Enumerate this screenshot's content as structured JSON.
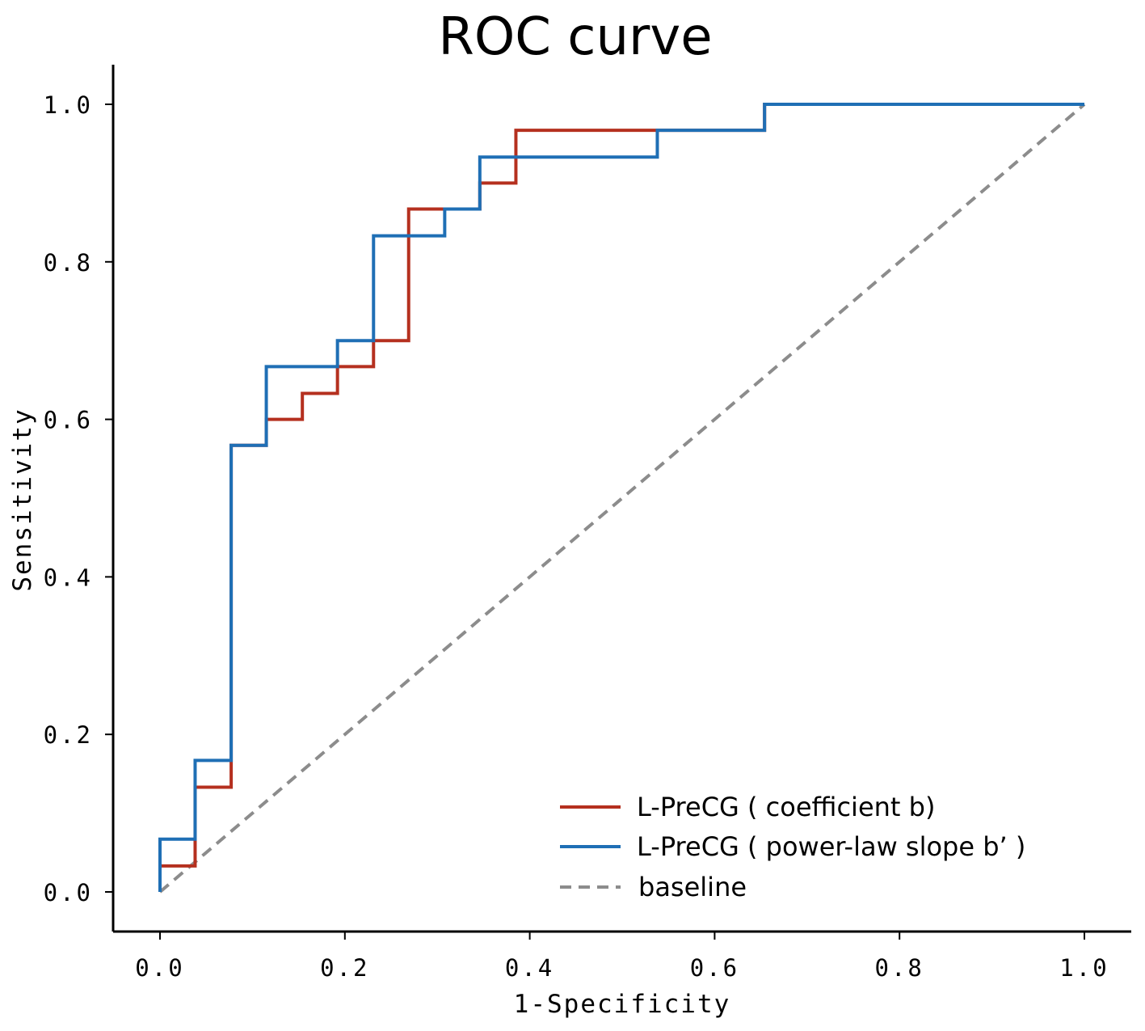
{
  "chart_data": {
    "type": "line",
    "title": "ROC curve",
    "xlabel": "1-Specificity",
    "ylabel": "Sensitivity",
    "xlim": [
      0,
      1
    ],
    "ylim": [
      0,
      1
    ],
    "x_ticks": [
      0.0,
      0.2,
      0.4,
      0.6,
      0.8,
      1.0
    ],
    "y_ticks": [
      0.0,
      0.2,
      0.4,
      0.6,
      0.8,
      1.0
    ],
    "x_tick_labels": [
      "0.0",
      "0.2",
      "0.4",
      "0.6",
      "0.8",
      "1.0"
    ],
    "y_tick_labels": [
      "0.0",
      "0.2",
      "0.4",
      "0.6",
      "0.8",
      "1.0"
    ],
    "grid": false,
    "legend_position": "bottom-right",
    "series": [
      {
        "name": "L-PreCG ( coefficient b)",
        "color": "#b5301f",
        "style": "solid",
        "points": [
          [
            0,
            0
          ],
          [
            0,
            0.033
          ],
          [
            0.038,
            0.033
          ],
          [
            0.038,
            0.133
          ],
          [
            0.077,
            0.133
          ],
          [
            0.077,
            0.567
          ],
          [
            0.115,
            0.567
          ],
          [
            0.115,
            0.6
          ],
          [
            0.154,
            0.6
          ],
          [
            0.154,
            0.633
          ],
          [
            0.192,
            0.633
          ],
          [
            0.192,
            0.667
          ],
          [
            0.231,
            0.667
          ],
          [
            0.231,
            0.7
          ],
          [
            0.269,
            0.7
          ],
          [
            0.269,
            0.867
          ],
          [
            0.346,
            0.867
          ],
          [
            0.346,
            0.9
          ],
          [
            0.385,
            0.9
          ],
          [
            0.385,
            0.967
          ],
          [
            0.654,
            0.967
          ],
          [
            0.654,
            1.0
          ],
          [
            1.0,
            1.0
          ]
        ]
      },
      {
        "name": "L-PreCG ( power-law slope b’ )",
        "color": "#1f6fb5",
        "style": "solid",
        "points": [
          [
            0,
            0
          ],
          [
            0,
            0.067
          ],
          [
            0.038,
            0.067
          ],
          [
            0.038,
            0.167
          ],
          [
            0.077,
            0.167
          ],
          [
            0.077,
            0.567
          ],
          [
            0.115,
            0.567
          ],
          [
            0.115,
            0.667
          ],
          [
            0.192,
            0.667
          ],
          [
            0.192,
            0.7
          ],
          [
            0.231,
            0.7
          ],
          [
            0.231,
            0.833
          ],
          [
            0.308,
            0.833
          ],
          [
            0.308,
            0.867
          ],
          [
            0.346,
            0.867
          ],
          [
            0.346,
            0.933
          ],
          [
            0.538,
            0.933
          ],
          [
            0.538,
            0.967
          ],
          [
            0.654,
            0.967
          ],
          [
            0.654,
            1.0
          ],
          [
            1.0,
            1.0
          ]
        ]
      },
      {
        "name": "baseline",
        "color": "#8c8c8c",
        "style": "dashed",
        "points": [
          [
            0,
            0
          ],
          [
            1,
            1
          ]
        ]
      }
    ]
  }
}
